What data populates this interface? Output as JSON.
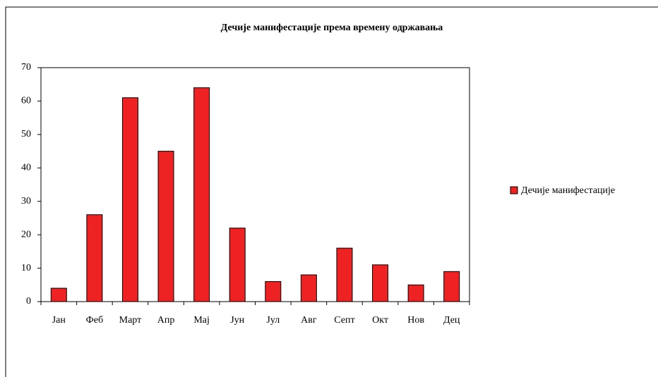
{
  "chart_data": {
    "type": "bar",
    "title": "Дечије манифестације према времену одржавања",
    "categories": [
      "Јан",
      "Феб",
      "Март",
      "Апр",
      "Мај",
      "Јун",
      "Јул",
      "Авг",
      "Септ",
      "Окт",
      "Нов",
      "Дец"
    ],
    "series": [
      {
        "name": "Дечије манифестације",
        "color": "#ee2222",
        "values": [
          4,
          26,
          61,
          45,
          64,
          22,
          6,
          8,
          16,
          11,
          5,
          9
        ]
      }
    ],
    "ylim": [
      0,
      70
    ],
    "yticks": [
      0,
      10,
      20,
      30,
      40,
      50,
      60,
      70
    ],
    "grid": false,
    "legend": "right"
  }
}
